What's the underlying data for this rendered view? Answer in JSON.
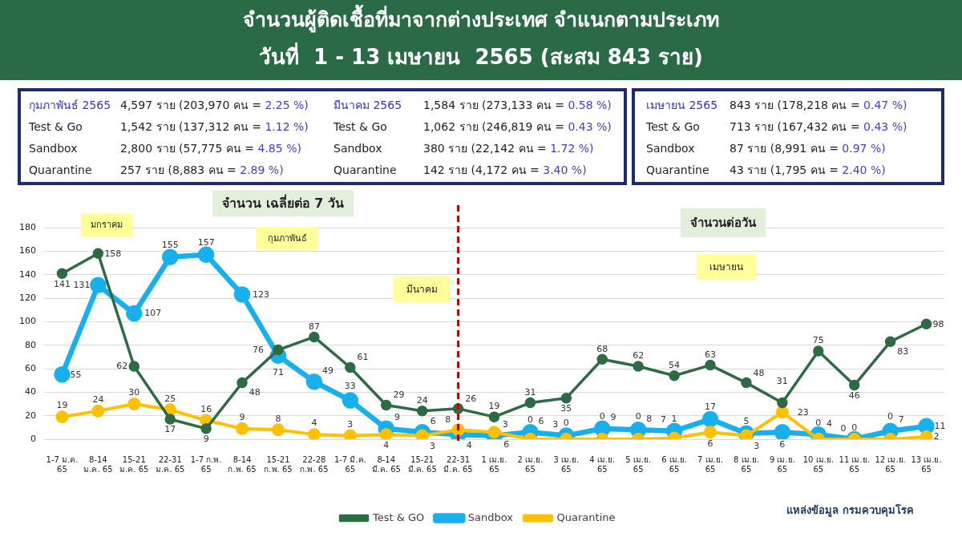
{
  "chart_data": {
    "type": "line",
    "title": "จำนวนผู้ติดเชื้อที่มาจากต่างประเทศ จำแนกตามประเภท",
    "subtitle": "วันที่  1 - 13 เมษายน  2565 (สะสม 843 ราย)",
    "categories": [
      "1-7 ม.ค. 65",
      "8-14 ม.ค. 65",
      "15-21 ม.ค. 65",
      "22-31 ม.ค. 65",
      "1-7 ก.พ. 65",
      "8-14 ก.พ. 65",
      "15-21 ก.พ. 65",
      "22-28 ก.พ. 65",
      "1-7 มี.ค. 65",
      "8-14 มี.ค. 65",
      "15-21 มี.ค. 65",
      "22-31 มี.ค. 65",
      "1 เม.ย. 65",
      "2 เม.ย. 65",
      "3 เม.ย. 65",
      "4 เม.ย. 65",
      "5 เม.ย. 65",
      "6 เม.ย. 65",
      "7 เม.ย. 65",
      "8 เม.ย. 65",
      "9 เม.ย. 65",
      "10 เม.ย. 65",
      "11 เม.ย. 65",
      "12 เม.ย. 65",
      "13 เม.ย. 65"
    ],
    "series": [
      {
        "name": "Test & GO",
        "color": "#2e6b45",
        "values": [
          141,
          158,
          62,
          17,
          9,
          48,
          76,
          87,
          61,
          29,
          24,
          26,
          19,
          31,
          35,
          68,
          62,
          54,
          63,
          48,
          31,
          75,
          46,
          83,
          98
        ]
      },
      {
        "name": "Sandbox",
        "color": "#17b0ec",
        "values": [
          55,
          131,
          107,
          155,
          157,
          123,
          71,
          49,
          33,
          9,
          6,
          4,
          3,
          6,
          3,
          9,
          8,
          7,
          17,
          5,
          6,
          4,
          0,
          7,
          11
        ]
      },
      {
        "name": "Quarantine",
        "color": "#ffc000",
        "values": [
          19,
          24,
          30,
          25,
          16,
          9,
          8,
          4,
          3,
          4,
          3,
          8,
          6,
          0,
          0,
          0,
          0,
          1,
          6,
          3,
          23,
          0,
          0,
          0,
          2
        ]
      }
    ],
    "ylim": [
      0,
      180
    ],
    "yticks": [
      0,
      20,
      40,
      60,
      80,
      100,
      120,
      140,
      160,
      180
    ],
    "grid": "y",
    "legend": "bottom",
    "marker": "circle",
    "line_style": "solid",
    "data_labels": true,
    "ref_lines": [
      {
        "axis": "x",
        "value": "22-31 มี.ค. 65",
        "color": "#c00000",
        "line_style": "dashed"
      }
    ],
    "annotations": [
      "จำนวน เฉลี่ยต่อ 7 วัน",
      "จำนวนต่อวัน",
      "มกราคม",
      "กุมภาพันธ์",
      "มีนาคม",
      "เมษายน",
      "แหล่งข้อมูล กรมควบคุมโรค",
      "กุมภาพันธ์ 2565",
      "4,597 ราย (203,970 คน = 2.25 %)",
      "Test & Go",
      "1,542 ราย (137,312 คน = 1.12 %)",
      "Sandbox",
      "2,800 ราย (57,775 คน = 4.85 %)",
      "Quarantine",
      "257 ราย (8,883 คน = 2.89 %)",
      "มีนาคม 2565",
      "1,584 ราย (273,133 คน = 0.58 %)",
      "Test & Go",
      "1,062 ราย (246,819 คน = 0.43 %)",
      "Sandbox",
      "380 ราย (22,142 คน = 1.72 %)",
      "Quarantine",
      "142 ราย (4,172 คน = 3.40 %)",
      "เมษายน 2565",
      "843 ราย (178,218 คน = 0.47 %)",
      "Test & Go",
      "713 ราย (167,432 คน = 0.43 %)",
      "Sandbox",
      "87 ราย (8,991 คน = 0.97 %)",
      "Quarantine",
      "43 ราย (1,795 คน = 2.40 %)"
    ]
  }
}
